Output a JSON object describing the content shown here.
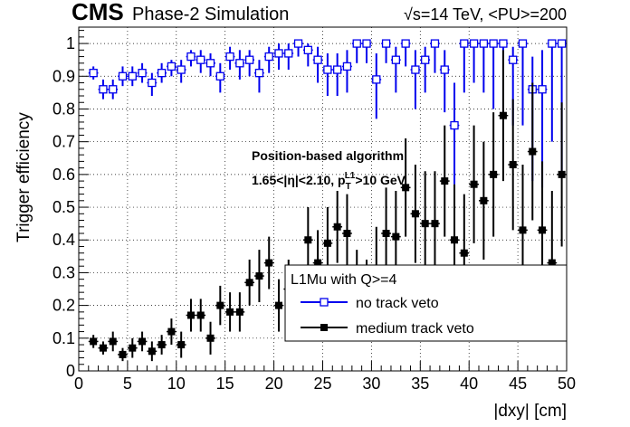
{
  "header": {
    "experiment": "CMS",
    "subtitle": "Phase-2 Simulation",
    "energy_label": "√s=14 TeV, <PU>=200"
  },
  "annotation": {
    "line1": "Position-based algorithm",
    "line2_eta": "1.65<|η|<2.10, p",
    "line2_sub": "T",
    "line2_sup": "L1",
    "line2_rest": ">10 GeV"
  },
  "chart_data": {
    "type": "scatter",
    "title": "",
    "xlabel": "|dxy| [cm]",
    "ylabel": "Trigger efficiency",
    "xlim": [
      0,
      50
    ],
    "ylim": [
      0,
      1.05
    ],
    "xticks": [
      0,
      5,
      10,
      15,
      20,
      25,
      30,
      35,
      40,
      45,
      50
    ],
    "yticks": [
      0,
      0.1,
      0.2,
      0.3,
      0.4,
      0.5,
      0.6,
      0.7,
      0.8,
      0.9,
      1
    ],
    "grid": true,
    "legend": {
      "title": "L1Mu with Q>=4",
      "placement": "bottom-right"
    },
    "series": [
      {
        "name": "no track veto",
        "color": "#0000ee",
        "marker": "open-square",
        "x": [
          1.5,
          2.5,
          3.5,
          4.5,
          5.5,
          6.5,
          7.5,
          8.5,
          9.5,
          10.5,
          11.5,
          12.5,
          13.5,
          14.5,
          15.5,
          16.5,
          17.5,
          18.5,
          19.5,
          20.5,
          21.5,
          22.5,
          23.5,
          24.5,
          25.5,
          26.5,
          27.5,
          28.5,
          29.5,
          30.5,
          31.5,
          32.5,
          33.5,
          34.5,
          35.5,
          36.5,
          37.5,
          38.5,
          39.5,
          40.5,
          41.5,
          42.5,
          43.5,
          44.5,
          45.5,
          46.5,
          47.5,
          48.5,
          49.5
        ],
        "y": [
          0.91,
          0.86,
          0.86,
          0.9,
          0.9,
          0.91,
          0.88,
          0.91,
          0.93,
          0.92,
          0.96,
          0.95,
          0.94,
          0.9,
          0.96,
          0.94,
          0.95,
          0.91,
          0.96,
          0.97,
          0.97,
          1.0,
          0.98,
          0.95,
          0.92,
          0.92,
          0.93,
          1.0,
          1.0,
          0.89,
          1.0,
          0.95,
          1.0,
          0.92,
          0.95,
          1.0,
          0.92,
          0.75,
          1.0,
          1.0,
          1.0,
          1.0,
          1.0,
          0.95,
          1.0,
          0.86,
          0.86,
          1.0,
          1.0
        ],
        "err_low": [
          0.02,
          0.03,
          0.03,
          0.03,
          0.03,
          0.03,
          0.04,
          0.03,
          0.03,
          0.04,
          0.03,
          0.04,
          0.04,
          0.05,
          0.04,
          0.05,
          0.05,
          0.06,
          0.05,
          0.05,
          0.05,
          0.04,
          0.05,
          0.07,
          0.08,
          0.08,
          0.08,
          0.06,
          0.06,
          0.12,
          0.06,
          0.1,
          0.07,
          0.12,
          0.1,
          0.09,
          0.13,
          0.18,
          0.15,
          0.12,
          0.15,
          0.2,
          0.22,
          0.2,
          0.25,
          0.28,
          0.3,
          0.3,
          0.4
        ],
        "err_high": [
          0.02,
          0.03,
          0.03,
          0.03,
          0.03,
          0.03,
          0.03,
          0.03,
          0.02,
          0.03,
          0.02,
          0.03,
          0.03,
          0.04,
          0.03,
          0.04,
          0.03,
          0.04,
          0.03,
          0.03,
          0.03,
          0.0,
          0.02,
          0.04,
          0.05,
          0.05,
          0.05,
          0.0,
          0.0,
          0.08,
          0.0,
          0.04,
          0.0,
          0.06,
          0.04,
          0.0,
          0.06,
          0.13,
          0.0,
          0.0,
          0.0,
          0.0,
          0.0,
          0.04,
          0.0,
          0.1,
          0.12,
          0.0,
          0.0
        ]
      },
      {
        "name": "medium track veto",
        "color": "#000000",
        "marker": "filled-square",
        "x": [
          1.5,
          2.5,
          3.5,
          4.5,
          5.5,
          6.5,
          7.5,
          8.5,
          9.5,
          10.5,
          11.5,
          12.5,
          13.5,
          14.5,
          15.5,
          16.5,
          17.5,
          18.5,
          19.5,
          20.5,
          21.5,
          22.5,
          23.5,
          24.5,
          25.5,
          26.5,
          27.5,
          28.5,
          29.5,
          30.5,
          31.5,
          32.5,
          33.5,
          34.5,
          35.5,
          36.5,
          37.5,
          38.5,
          39.5,
          40.5,
          41.5,
          42.5,
          43.5,
          44.5,
          45.5,
          46.5,
          47.5,
          48.5,
          49.5
        ],
        "y": [
          0.09,
          0.07,
          0.09,
          0.05,
          0.07,
          0.09,
          0.06,
          0.08,
          0.12,
          0.08,
          0.17,
          0.17,
          0.1,
          0.2,
          0.18,
          0.18,
          0.27,
          0.29,
          0.33,
          0.2,
          0.25,
          0.21,
          0.4,
          0.33,
          0.39,
          0.44,
          0.42,
          0.25,
          0.22,
          0.31,
          0.42,
          0.41,
          0.56,
          0.48,
          0.45,
          0.45,
          0.58,
          0.4,
          0.36,
          0.57,
          0.52,
          0.6,
          0.78,
          0.63,
          0.43,
          0.67,
          0.43,
          0.33,
          0.6
        ],
        "err_low": [
          0.02,
          0.02,
          0.03,
          0.02,
          0.03,
          0.03,
          0.03,
          0.03,
          0.04,
          0.04,
          0.05,
          0.05,
          0.05,
          0.06,
          0.06,
          0.06,
          0.07,
          0.08,
          0.08,
          0.08,
          0.09,
          0.09,
          0.1,
          0.1,
          0.11,
          0.11,
          0.12,
          0.12,
          0.12,
          0.13,
          0.14,
          0.14,
          0.15,
          0.15,
          0.16,
          0.16,
          0.17,
          0.17,
          0.18,
          0.18,
          0.18,
          0.19,
          0.2,
          0.2,
          0.2,
          0.21,
          0.21,
          0.22,
          0.22
        ],
        "err_high": [
          0.02,
          0.02,
          0.03,
          0.02,
          0.03,
          0.03,
          0.03,
          0.03,
          0.04,
          0.04,
          0.05,
          0.05,
          0.05,
          0.06,
          0.06,
          0.06,
          0.07,
          0.08,
          0.08,
          0.08,
          0.09,
          0.09,
          0.1,
          0.1,
          0.11,
          0.11,
          0.12,
          0.12,
          0.12,
          0.13,
          0.14,
          0.14,
          0.15,
          0.15,
          0.16,
          0.16,
          0.17,
          0.17,
          0.18,
          0.18,
          0.18,
          0.19,
          0.2,
          0.2,
          0.2,
          0.21,
          0.21,
          0.22,
          0.22
        ]
      }
    ]
  }
}
